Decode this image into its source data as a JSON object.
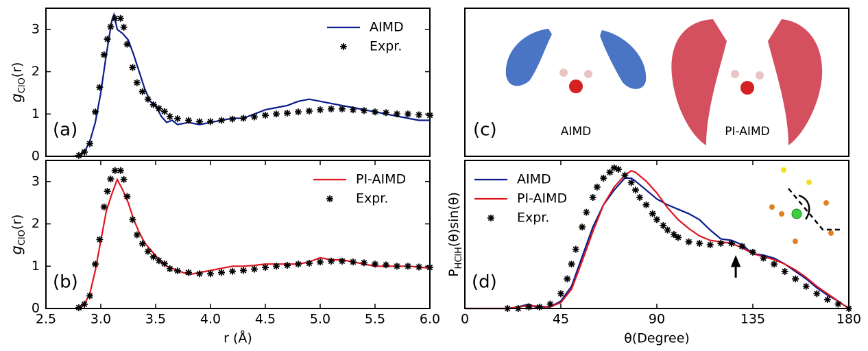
{
  "chart_data": [
    {
      "type": "line",
      "panel_label": "(a)",
      "ylabel": [
        "g",
        "ClO",
        "(r)"
      ],
      "xlim": [
        2.5,
        6.0
      ],
      "ylim": [
        0,
        3.5
      ],
      "yticks": [
        0,
        1,
        2,
        3
      ],
      "legend": "upper right",
      "series": [
        {
          "name": "AIMD",
          "color": "#0a1a8c",
          "style": "line",
          "x": [
            2.75,
            2.8,
            2.85,
            2.9,
            2.95,
            3.0,
            3.05,
            3.1,
            3.12,
            3.15,
            3.2,
            3.25,
            3.3,
            3.35,
            3.4,
            3.45,
            3.5,
            3.55,
            3.6,
            3.65,
            3.7,
            3.8,
            3.9,
            4.0,
            4.1,
            4.2,
            4.3,
            4.4,
            4.5,
            4.6,
            4.7,
            4.8,
            4.9,
            5.0,
            5.1,
            5.2,
            5.3,
            5.4,
            5.5,
            5.6,
            5.7,
            5.8,
            5.9,
            6.0
          ],
          "values": [
            0,
            0.02,
            0.1,
            0.35,
            0.8,
            1.5,
            2.4,
            3.2,
            3.35,
            3.0,
            2.9,
            2.75,
            2.4,
            2.0,
            1.6,
            1.3,
            1.2,
            0.95,
            0.8,
            0.85,
            0.75,
            0.8,
            0.75,
            0.8,
            0.85,
            0.9,
            0.9,
            1.0,
            1.1,
            1.15,
            1.2,
            1.3,
            1.35,
            1.3,
            1.25,
            1.2,
            1.15,
            1.1,
            1.05,
            1.0,
            0.95,
            0.9,
            0.85,
            0.85
          ]
        },
        {
          "name": "Expr.",
          "color": "#000000",
          "style": "marker",
          "x": [
            2.8,
            2.85,
            2.9,
            2.95,
            2.99,
            3.03,
            3.06,
            3.09,
            3.13,
            3.18,
            3.21,
            3.24,
            3.29,
            3.33,
            3.38,
            3.43,
            3.48,
            3.53,
            3.58,
            3.63,
            3.7,
            3.8,
            3.9,
            4.0,
            4.1,
            4.2,
            4.3,
            4.4,
            4.5,
            4.6,
            4.7,
            4.8,
            4.9,
            5.0,
            5.1,
            5.2,
            5.3,
            5.4,
            5.5,
            5.6,
            5.7,
            5.8,
            5.9,
            6.0
          ],
          "values": [
            0.02,
            0.1,
            0.3,
            1.05,
            1.63,
            2.4,
            2.77,
            3.06,
            3.26,
            3.26,
            3.05,
            2.65,
            2.1,
            1.74,
            1.53,
            1.35,
            1.22,
            1.13,
            1.06,
            0.94,
            0.89,
            0.85,
            0.82,
            0.82,
            0.85,
            0.88,
            0.9,
            0.93,
            0.97,
            1.0,
            1.02,
            1.05,
            1.07,
            1.1,
            1.12,
            1.12,
            1.1,
            1.08,
            1.05,
            1.03,
            1.0,
            1.0,
            0.98,
            0.97
          ]
        }
      ]
    },
    {
      "type": "line",
      "panel_label": "(b)",
      "ylabel": [
        "g",
        "ClO",
        "(r)"
      ],
      "xlabel": "r (Å)",
      "xlim": [
        2.5,
        6.0
      ],
      "xticks": [
        2.5,
        {
          "value": 3,
          "label": "3.0"
        },
        3.5,
        {
          "value": 4,
          "label": "4.0"
        },
        4.5,
        {
          "value": 5,
          "label": "5.0"
        },
        5.5,
        {
          "value": 6,
          "label": "6.0"
        }
      ],
      "ylim": [
        0,
        3.5
      ],
      "yticks": [
        0,
        1,
        2,
        3
      ],
      "legend": "upper right",
      "series": [
        {
          "name": "PI-AIMD",
          "color": "#e0141e",
          "style": "line",
          "x": [
            2.8,
            2.85,
            2.9,
            2.95,
            3.0,
            3.05,
            3.1,
            3.15,
            3.2,
            3.25,
            3.3,
            3.35,
            3.4,
            3.45,
            3.5,
            3.55,
            3.6,
            3.7,
            3.8,
            3.9,
            4.0,
            4.1,
            4.2,
            4.3,
            4.4,
            4.5,
            4.6,
            4.7,
            4.8,
            4.9,
            5.0,
            5.1,
            5.2,
            5.3,
            5.4,
            5.5,
            5.6,
            5.7,
            5.8,
            5.9,
            6.0
          ],
          "values": [
            0.02,
            0.1,
            0.35,
            0.9,
            1.6,
            2.3,
            2.7,
            3.05,
            2.8,
            2.5,
            2.1,
            1.8,
            1.55,
            1.4,
            1.25,
            1.1,
            1.0,
            0.9,
            0.8,
            0.85,
            0.9,
            0.95,
            1.0,
            1.0,
            1.02,
            1.05,
            1.05,
            1.05,
            1.05,
            1.1,
            1.2,
            1.15,
            1.15,
            1.1,
            1.05,
            1.0,
            1.0,
            1.0,
            1.0,
            0.98,
            0.95
          ]
        },
        {
          "name": "Expr.",
          "color": "#000000",
          "style": "marker",
          "x": [
            2.8,
            2.85,
            2.9,
            2.95,
            2.99,
            3.03,
            3.06,
            3.09,
            3.13,
            3.18,
            3.21,
            3.24,
            3.29,
            3.33,
            3.38,
            3.43,
            3.48,
            3.53,
            3.58,
            3.63,
            3.7,
            3.8,
            3.9,
            4.0,
            4.1,
            4.2,
            4.3,
            4.4,
            4.5,
            4.6,
            4.7,
            4.8,
            4.9,
            5.0,
            5.1,
            5.2,
            5.3,
            5.4,
            5.5,
            5.6,
            5.7,
            5.8,
            5.9,
            6.0
          ],
          "values": [
            0.02,
            0.1,
            0.3,
            1.05,
            1.63,
            2.4,
            2.77,
            3.06,
            3.26,
            3.26,
            3.05,
            2.65,
            2.1,
            1.74,
            1.53,
            1.35,
            1.22,
            1.13,
            1.06,
            0.94,
            0.89,
            0.85,
            0.82,
            0.82,
            0.85,
            0.88,
            0.9,
            0.93,
            0.97,
            1.0,
            1.02,
            1.05,
            1.07,
            1.1,
            1.12,
            1.12,
            1.1,
            1.08,
            1.05,
            1.03,
            1.0,
            1.0,
            0.98,
            0.97
          ]
        }
      ]
    },
    {
      "type": "line",
      "panel_label": "(d)",
      "ylabel": [
        "P",
        "HClH",
        "(θ)sin(θ)"
      ],
      "xlabel": "θ(Degree)",
      "xlim": [
        0,
        180
      ],
      "xticks": [
        0,
        45,
        90,
        135,
        180
      ],
      "ylim": [
        0,
        1
      ],
      "legend": "upper left",
      "annotation": "arrow",
      "annotation_x": 127,
      "series": [
        {
          "name": "AIMD",
          "color": "#0a1a8c",
          "style": "line",
          "x": [
            0,
            20,
            25,
            30,
            33,
            40,
            45,
            50,
            55,
            60,
            65,
            70,
            75,
            78,
            80,
            85,
            90,
            95,
            100,
            105,
            110,
            115,
            120,
            125,
            130,
            135,
            140,
            145,
            150,
            155,
            160,
            165,
            170,
            175,
            180
          ],
          "values": [
            0,
            0,
            0.01,
            0.03,
            0.01,
            0.01,
            0.05,
            0.15,
            0.35,
            0.55,
            0.7,
            0.8,
            0.88,
            0.88,
            0.86,
            0.8,
            0.74,
            0.7,
            0.67,
            0.64,
            0.6,
            0.53,
            0.47,
            0.46,
            0.43,
            0.37,
            0.36,
            0.34,
            0.3,
            0.25,
            0.2,
            0.14,
            0.09,
            0.05,
            0
          ]
        },
        {
          "name": "PI-AIMD",
          "color": "#e0141e",
          "style": "line",
          "x": [
            0,
            20,
            30,
            40,
            45,
            50,
            55,
            60,
            65,
            70,
            75,
            78,
            80,
            85,
            90,
            95,
            100,
            105,
            110,
            115,
            120,
            125,
            130,
            135,
            140,
            145,
            150,
            155,
            160,
            165,
            170,
            175,
            180
          ],
          "values": [
            0,
            0,
            0.02,
            0.01,
            0.04,
            0.13,
            0.32,
            0.52,
            0.7,
            0.82,
            0.9,
            0.93,
            0.92,
            0.86,
            0.78,
            0.68,
            0.6,
            0.54,
            0.49,
            0.46,
            0.45,
            0.44,
            0.41,
            0.37,
            0.35,
            0.33,
            0.3,
            0.26,
            0.21,
            0.15,
            0.1,
            0.05,
            0
          ]
        },
        {
          "name": "Expr.",
          "color": "#000000",
          "style": "marker",
          "x": [
            20,
            25,
            30,
            35,
            40,
            45,
            48,
            50,
            52,
            55,
            57,
            60,
            62,
            65,
            68,
            70,
            72,
            75,
            78,
            80,
            82,
            85,
            88,
            90,
            93,
            95,
            98,
            100,
            105,
            110,
            115,
            120,
            125,
            130,
            135,
            140,
            145,
            150,
            155,
            160,
            165,
            170,
            175,
            180
          ],
          "values": [
            0,
            0,
            0.01,
            0.01,
            0.03,
            0.1,
            0.2,
            0.3,
            0.4,
            0.55,
            0.65,
            0.75,
            0.82,
            0.88,
            0.92,
            0.95,
            0.94,
            0.9,
            0.85,
            0.8,
            0.75,
            0.7,
            0.64,
            0.6,
            0.56,
            0.53,
            0.5,
            0.48,
            0.45,
            0.44,
            0.43,
            0.44,
            0.44,
            0.42,
            0.38,
            0.34,
            0.3,
            0.25,
            0.2,
            0.15,
            0.1,
            0.06,
            0.03,
            0
          ]
        }
      ]
    }
  ],
  "image_panel": {
    "label": "(c)",
    "captions": [
      "AIMD",
      "PI-AIMD"
    ]
  }
}
